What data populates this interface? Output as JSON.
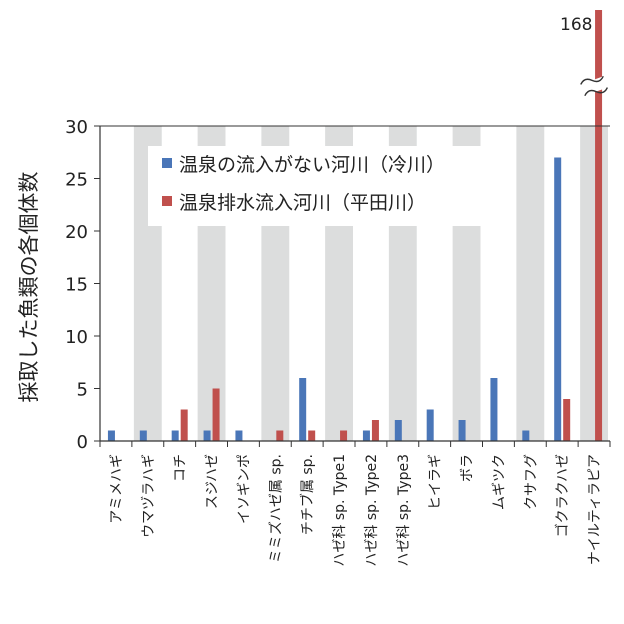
{
  "chart_data": {
    "type": "bar",
    "ylabel": "採取した魚類の各個体数",
    "ylim": [
      0,
      30
    ],
    "yticks": [
      "0",
      "5",
      "10",
      "15",
      "20",
      "25",
      "30"
    ],
    "grid": false,
    "legend_position": "top-left",
    "background_bands": "alternating-gray-columns",
    "axis_break": true,
    "categories": [
      "アミメハギ",
      "ウマヅラハギ",
      "コチ",
      "スジハゼ",
      "イソギンポ",
      "ミミズハゼ属 sp.",
      "チチブ属 sp.",
      "ハゼ科 sp. Type1",
      "ハゼ科 sp. Type2",
      "ハゼ科 sp. Type3",
      "ヒイラギ",
      "ボラ",
      "ムギツク",
      "クサフグ",
      "ゴクラクハゼ",
      "ナイルティラピア"
    ],
    "series": [
      {
        "name": "温泉の流入がない河川（冷川）",
        "color": "#4a76b8",
        "values": [
          1,
          1,
          1,
          1,
          1,
          0,
          6,
          0,
          1,
          2,
          3,
          2,
          6,
          1,
          27,
          0
        ]
      },
      {
        "name": "温泉排水流入河川（平田川）",
        "color": "#c0504d",
        "values": [
          0,
          0,
          3,
          5,
          0,
          1,
          1,
          1,
          2,
          0,
          0,
          0,
          0,
          0,
          4,
          168
        ]
      }
    ],
    "annotations": [
      {
        "text": "168"
      }
    ]
  }
}
